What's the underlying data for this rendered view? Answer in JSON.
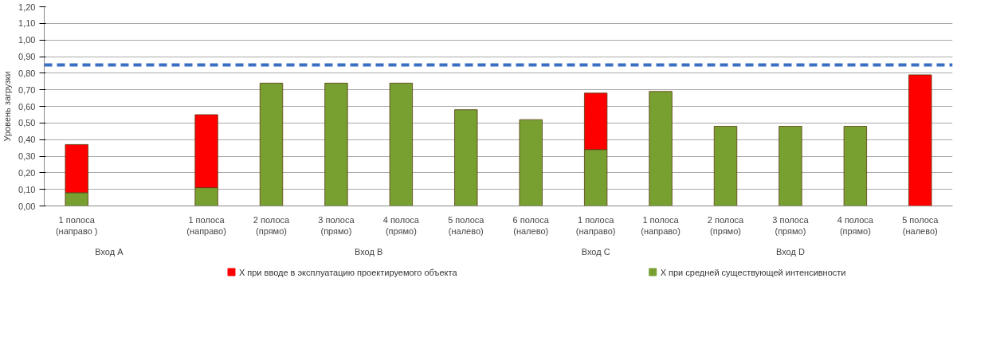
{
  "chart_data": {
    "type": "bar",
    "stacked": true,
    "ylabel": "Уровень загрузки",
    "categories": [
      "1 полоса\n(направо )",
      null,
      "1 полоса\n(направо)",
      "2 полоса\n(прямо)",
      "3 полоса\n(прямо)",
      "4 полоса\n(прямо)",
      "5 полоса\n(налево)",
      "6 полоса\n(налево)",
      "1 полоса\n(направо)",
      "1 полоса\n(направо)",
      "2 полоса\n(прямо)",
      "3 полоса\n(прямо)",
      "4 полоса\n(прямо)",
      "5 полоса\n(налево)"
    ],
    "series": [
      {
        "name": "Х при средней существующей интенсивности",
        "color": "#77a030",
        "values": [
          0.08,
          null,
          0.11,
          0.74,
          0.74,
          0.74,
          0.58,
          0.52,
          0.34,
          0.69,
          0.48,
          0.48,
          0.48,
          0
        ]
      },
      {
        "name": "Х при вводе в эксплуатацию проектируемого объекта",
        "color": "#ff0000",
        "values": [
          0.29,
          null,
          0.44,
          0,
          0,
          0,
          0,
          0,
          0.34,
          0,
          0,
          0,
          0,
          0.79
        ]
      }
    ],
    "ylim": [
      0,
      1.2
    ],
    "yticks": [
      {
        "value": 0,
        "label": "0,00"
      },
      {
        "value": 0.1,
        "label": "0,10"
      },
      {
        "value": 0.2,
        "label": "0,20"
      },
      {
        "value": 0.3,
        "label": "0,30"
      },
      {
        "value": 0.4,
        "label": "0,40"
      },
      {
        "value": 0.5,
        "label": "0,50"
      },
      {
        "value": 0.6,
        "label": "0,60"
      },
      {
        "value": 0.7,
        "label": "0,70"
      },
      {
        "value": 0.8,
        "label": "0,80"
      },
      {
        "value": 0.9,
        "label": "0,90"
      },
      {
        "value": 1.0,
        "label": "1,00"
      },
      {
        "value": 1.1,
        "label": "1,10"
      },
      {
        "value": 1.2,
        "label": "1,20"
      }
    ],
    "ref_lines": [
      {
        "axis": "y",
        "value": 0.85,
        "color": "#3a6fc4",
        "line_style": "dashed"
      }
    ],
    "annotations": [
      "Вход A",
      "Вход B",
      "Вход C",
      "Вход D"
    ],
    "grid": "y",
    "legend": "bottom"
  }
}
